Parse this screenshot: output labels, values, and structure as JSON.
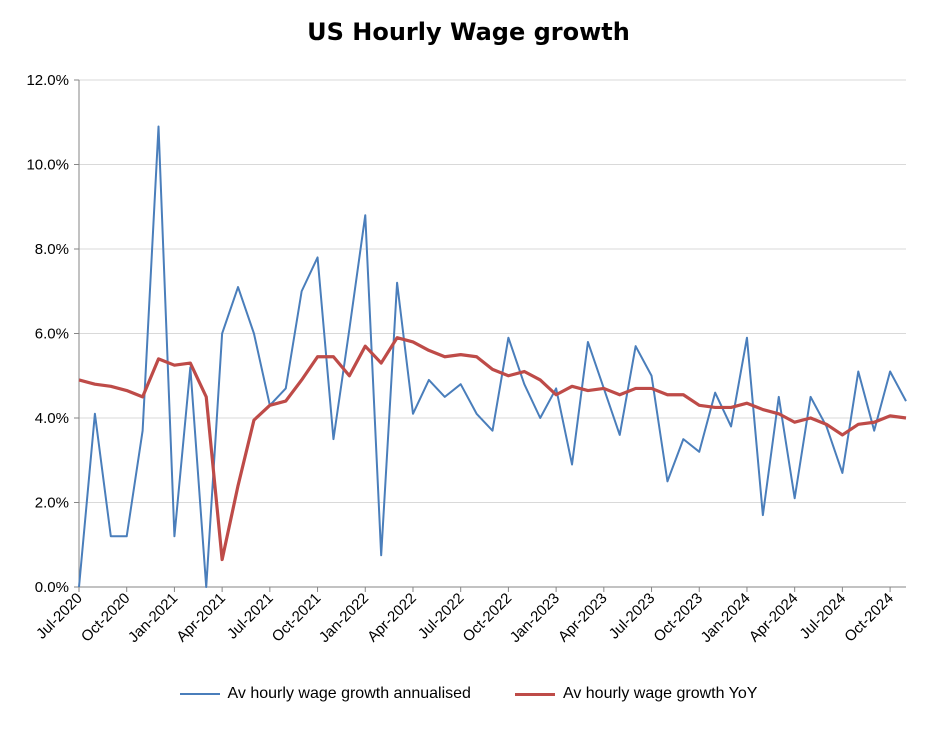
{
  "chart_data": {
    "type": "line",
    "title": "US Hourly Wage growth",
    "xlabel": "",
    "ylabel": "",
    "ylim": [
      0,
      0.12
    ],
    "y_ticks": [
      "0.0%",
      "2.0%",
      "4.0%",
      "6.0%",
      "8.0%",
      "10.0%",
      "12.0%"
    ],
    "y_tick_values": [
      0,
      0.02,
      0.04,
      0.06,
      0.08,
      0.1,
      0.12
    ],
    "x_tick_labels": [
      "Jul-2020",
      "Oct-2020",
      "Jan-2021",
      "Apr-2021",
      "Jul-2021",
      "Oct-2021",
      "Jan-2022",
      "Apr-2022",
      "Jul-2022",
      "Oct-2022",
      "Jan-2023",
      "Apr-2023",
      "Jul-2023",
      "Oct-2023",
      "Jan-2024",
      "Apr-2024",
      "Jul-2024",
      "Oct-2024"
    ],
    "x": [
      "Jul-2020",
      "Aug-2020",
      "Sep-2020",
      "Oct-2020",
      "Nov-2020",
      "Dec-2020",
      "Jan-2021",
      "Feb-2021",
      "Mar-2021",
      "Apr-2021",
      "May-2021",
      "Jun-2021",
      "Jul-2021",
      "Aug-2021",
      "Sep-2021",
      "Oct-2021",
      "Nov-2021",
      "Dec-2021",
      "Jan-2022",
      "Feb-2022",
      "Mar-2022",
      "Apr-2022",
      "May-2022",
      "Jun-2022",
      "Jul-2022",
      "Aug-2022",
      "Sep-2022",
      "Oct-2022",
      "Nov-2022",
      "Dec-2022",
      "Jan-2023",
      "Feb-2023",
      "Mar-2023",
      "Apr-2023",
      "May-2023",
      "Jun-2023",
      "Jul-2023",
      "Aug-2023",
      "Sep-2023",
      "Oct-2023",
      "Nov-2023",
      "Dec-2023",
      "Jan-2024",
      "Feb-2024",
      "Mar-2024",
      "Apr-2024",
      "May-2024",
      "Jun-2024",
      "Jul-2024",
      "Aug-2024",
      "Sep-2024",
      "Oct-2024",
      "Nov-2024"
    ],
    "grid": true,
    "legend_position": "bottom",
    "series": [
      {
        "name": "Av hourly wage growth annualised",
        "color": "#4a7ebb",
        "values": [
          0.0,
          0.041,
          0.012,
          0.012,
          0.037,
          0.109,
          0.012,
          0.052,
          0.0,
          0.06,
          0.071,
          0.06,
          0.043,
          0.047,
          0.07,
          0.078,
          0.035,
          0.061,
          0.088,
          0.0075,
          0.072,
          0.041,
          0.049,
          0.045,
          0.048,
          0.041,
          0.037,
          0.059,
          0.048,
          0.04,
          0.047,
          0.029,
          0.058,
          0.047,
          0.036,
          0.057,
          0.05,
          0.025,
          0.035,
          0.032,
          0.046,
          0.038,
          0.059,
          0.017,
          0.045,
          0.021,
          0.045,
          0.038,
          0.027,
          0.051,
          0.037,
          0.051,
          0.044
        ]
      },
      {
        "name": "Av hourly wage growth YoY",
        "color": "#be4b48",
        "values": [
          0.049,
          0.048,
          0.0475,
          0.0465,
          0.045,
          0.054,
          0.0525,
          0.053,
          0.045,
          0.0065,
          0.024,
          0.0395,
          0.043,
          0.044,
          0.049,
          0.0545,
          0.0545,
          0.05,
          0.057,
          0.053,
          0.059,
          0.058,
          0.056,
          0.0545,
          0.055,
          0.0545,
          0.0515,
          0.05,
          0.051,
          0.049,
          0.0455,
          0.0475,
          0.0465,
          0.047,
          0.0455,
          0.047,
          0.047,
          0.0455,
          0.0455,
          0.043,
          0.0425,
          0.0425,
          0.0435,
          0.042,
          0.041,
          0.039,
          0.04,
          0.0385,
          0.036,
          0.0385,
          0.039,
          0.0405,
          0.04
        ]
      }
    ]
  }
}
